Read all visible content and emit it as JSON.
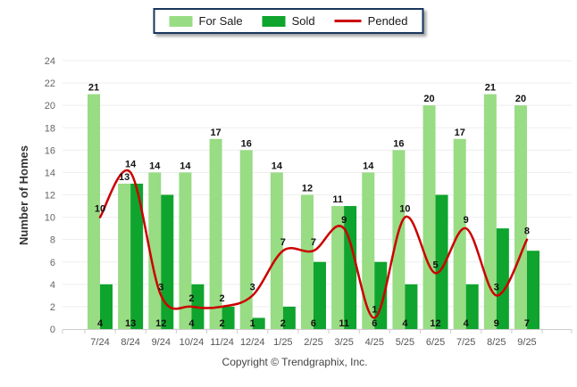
{
  "legend": {
    "for_sale": "For Sale",
    "sold": "Sold",
    "pended": "Pended"
  },
  "y_axis": {
    "title": "Number of Homes"
  },
  "footer": {
    "copyright": "Copyright © Trendgraphix, Inc."
  },
  "colors": {
    "for_sale": "#98DC84",
    "sold": "#0FA42D",
    "pended": "#CC0000",
    "grid": "#EDEDED",
    "axis_line": "#CCCCCC",
    "tick_text": "#666666",
    "value_label": "#111111",
    "legend_border": "#17375E"
  },
  "chart_data": {
    "type": "bar",
    "title": "",
    "xlabel": "",
    "ylabel": "Number of Homes",
    "ylim": [
      0,
      24
    ],
    "ytick_step": 2,
    "grid": true,
    "legend_position": "top",
    "categories": [
      "7/24",
      "8/24",
      "9/24",
      "10/24",
      "11/24",
      "12/24",
      "1/25",
      "2/25",
      "3/25",
      "4/25",
      "5/25",
      "6/25",
      "7/25",
      "8/25",
      "9/25"
    ],
    "series": [
      {
        "name": "For Sale",
        "type": "bar",
        "color_key": "for_sale",
        "values": [
          21,
          13,
          14,
          14,
          17,
          16,
          14,
          12,
          11,
          14,
          16,
          20,
          17,
          21,
          20
        ]
      },
      {
        "name": "Sold",
        "type": "bar",
        "color_key": "sold",
        "values": [
          4,
          13,
          12,
          4,
          2,
          1,
          2,
          6,
          11,
          6,
          4,
          12,
          4,
          9,
          7
        ]
      },
      {
        "name": "Pended",
        "type": "line",
        "color_key": "pended",
        "values": [
          10,
          14,
          3,
          2,
          2,
          3,
          7,
          7,
          9,
          1,
          10,
          5,
          9,
          3,
          8
        ]
      }
    ]
  }
}
